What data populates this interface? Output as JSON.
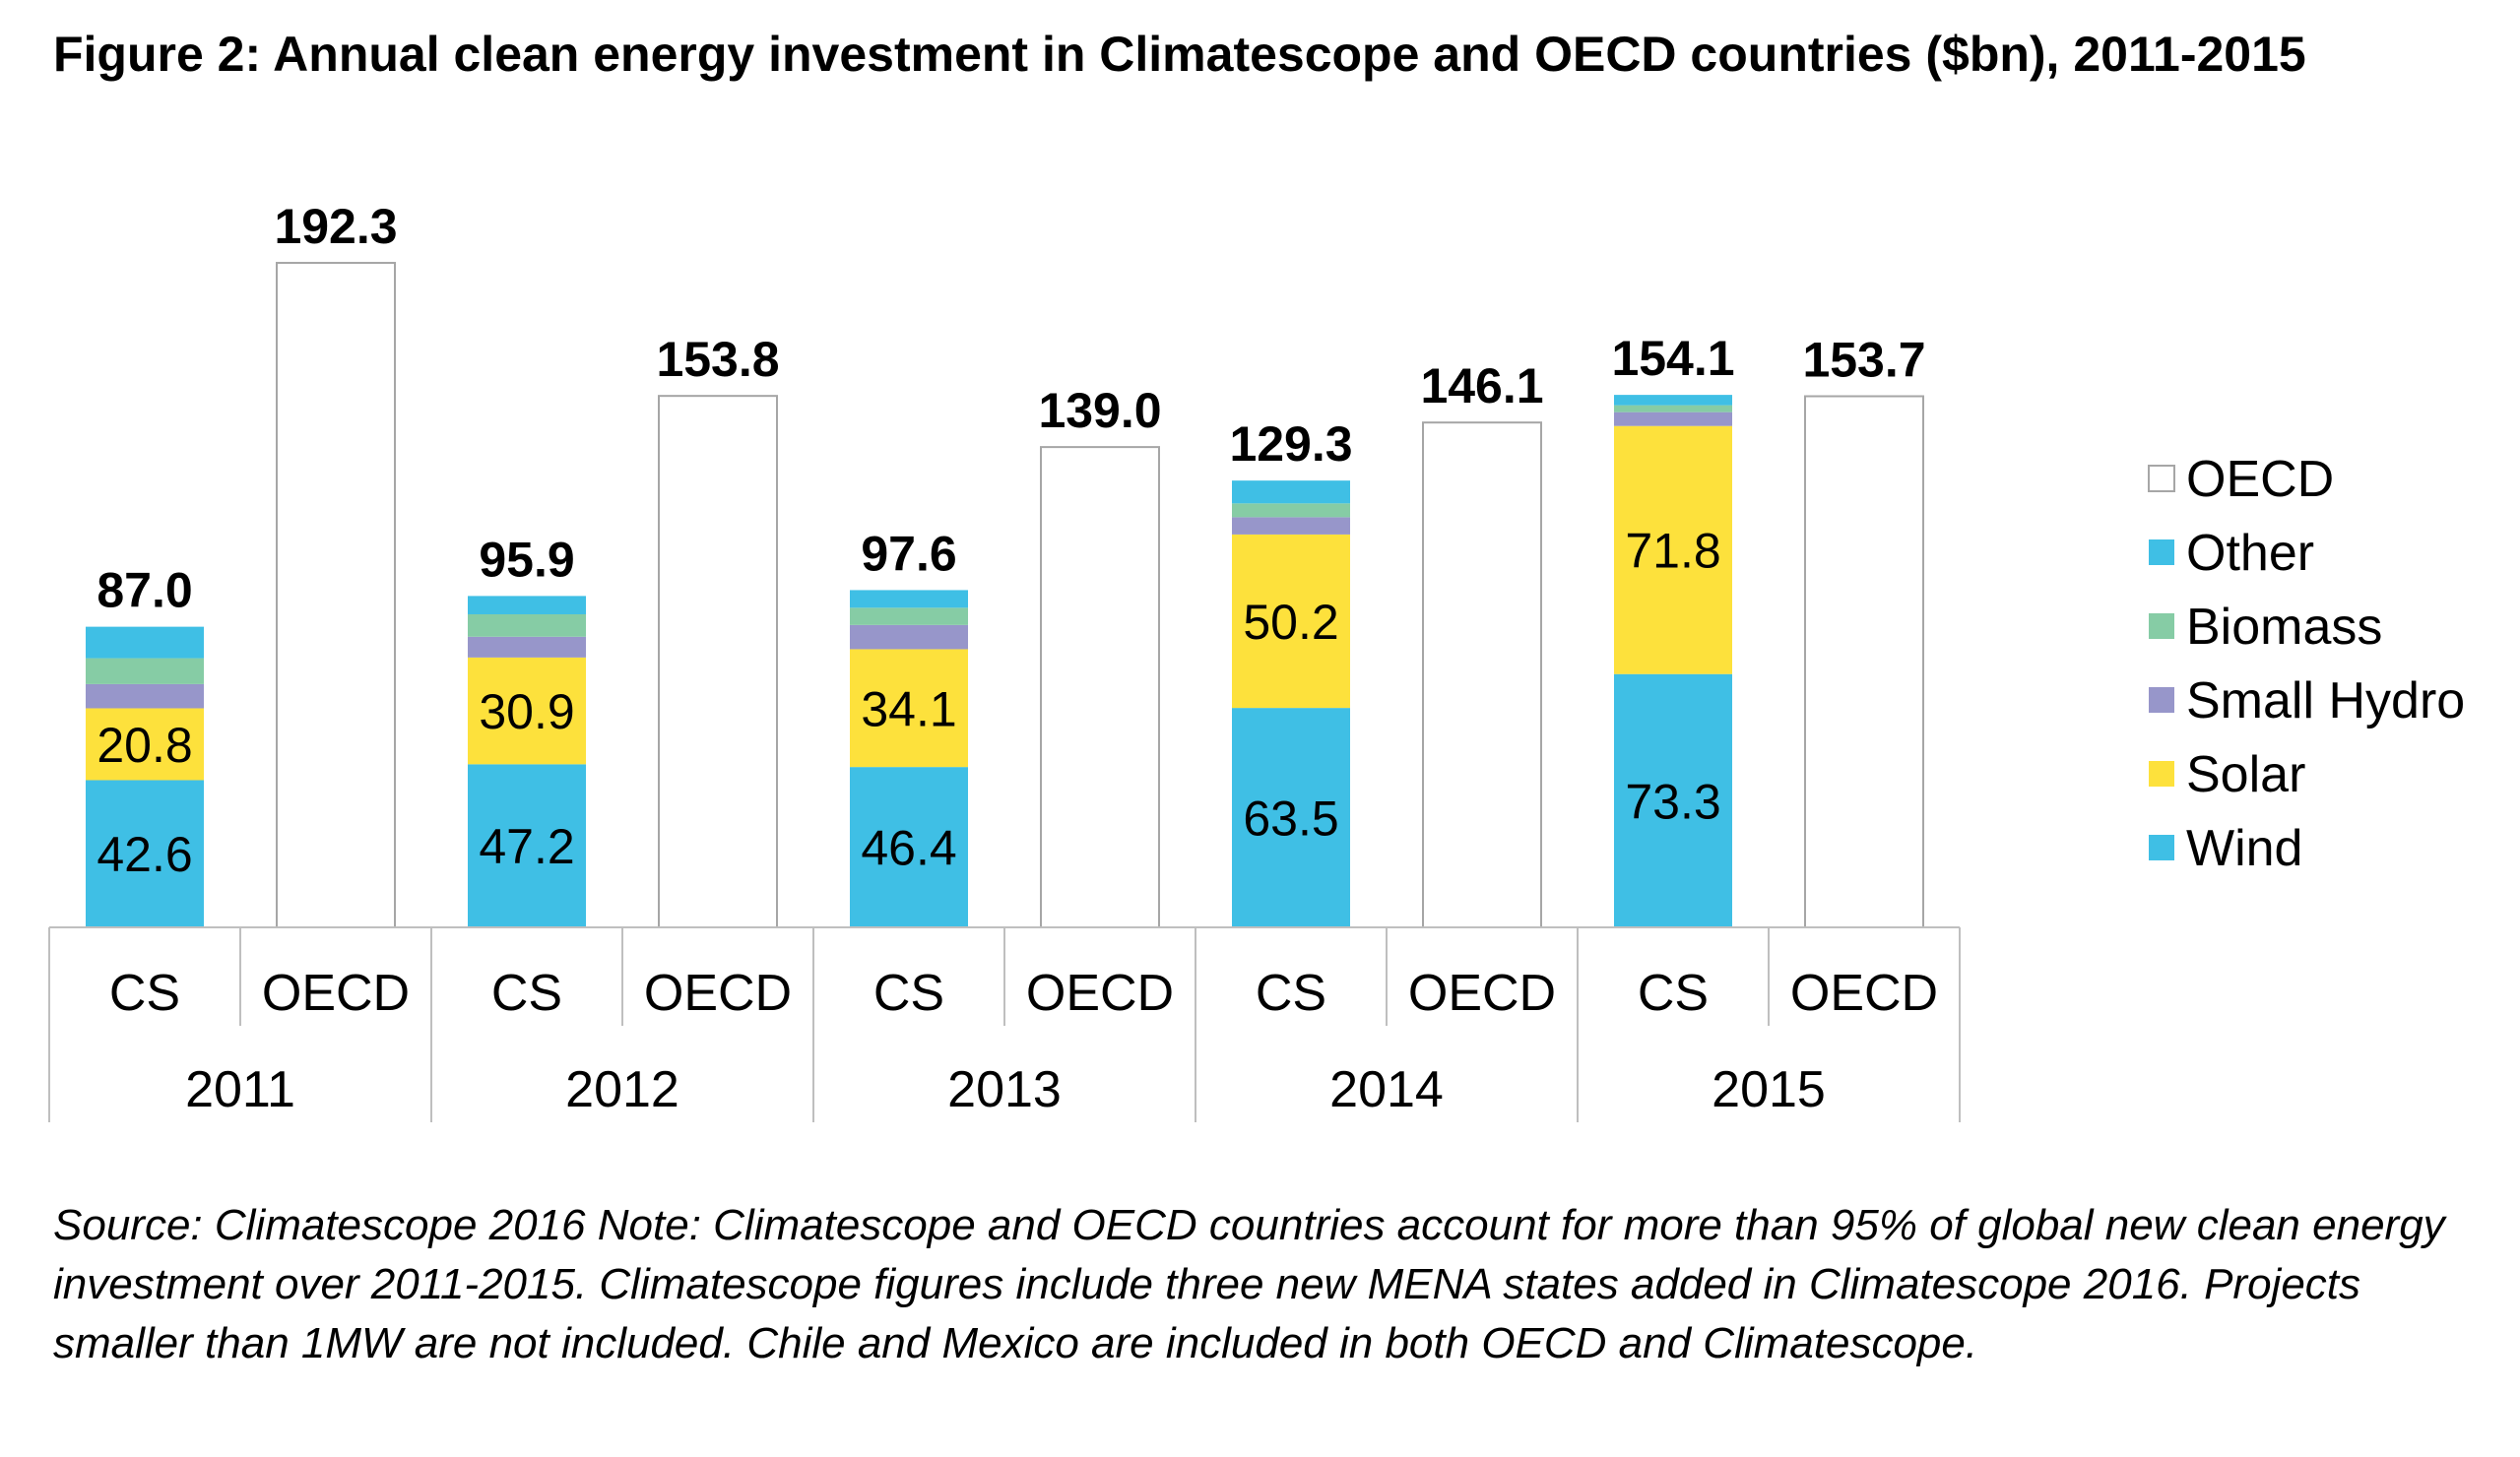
{
  "chart_data": {
    "type": "bar",
    "stacked": true,
    "title": "Figure 2: Annual clean energy investment in Climatescope and OECD countries ($bn), 2011-2015",
    "xlabel": "",
    "ylabel": "",
    "ylim": [
      0,
      200
    ],
    "grid": false,
    "legend_position": "right",
    "groups": [
      "2011",
      "2012",
      "2013",
      "2014",
      "2015"
    ],
    "categories": [
      "CS",
      "OECD",
      "CS",
      "OECD",
      "CS",
      "OECD",
      "CS",
      "OECD",
      "CS",
      "OECD"
    ],
    "x_group": [
      "2011",
      "2011",
      "2012",
      "2012",
      "2013",
      "2013",
      "2014",
      "2014",
      "2015",
      "2015"
    ],
    "totals": [
      "87.0",
      "192.3",
      "95.9",
      "153.8",
      "97.6",
      "139.0",
      "129.3",
      "146.1",
      "154.1",
      "153.7"
    ],
    "series": [
      {
        "name": "Wind",
        "color": "#3fbfe5",
        "values": [
          42.6,
          0,
          47.2,
          0,
          46.4,
          0,
          63.5,
          0,
          73.3,
          0
        ],
        "labels": [
          "42.6",
          "",
          "47.2",
          "",
          "46.4",
          "",
          "63.5",
          "",
          "73.3",
          ""
        ]
      },
      {
        "name": "Solar",
        "color": "#fde13c",
        "values": [
          20.8,
          0,
          30.9,
          0,
          34.1,
          0,
          50.2,
          0,
          71.8,
          0
        ],
        "labels": [
          "20.8",
          "",
          "30.9",
          "",
          "34.1",
          "",
          "50.2",
          "",
          "71.8",
          ""
        ]
      },
      {
        "name": "Small Hydro",
        "color": "#9796ca",
        "values": [
          7,
          0,
          6,
          0,
          7,
          0,
          5,
          0,
          4,
          0
        ],
        "labels": [
          "",
          "",
          "",
          "",
          "",
          "",
          "",
          "",
          "",
          ""
        ]
      },
      {
        "name": "Biomass",
        "color": "#86cca5",
        "values": [
          7.5,
          0,
          6.5,
          0,
          5,
          0,
          4,
          0,
          2,
          0
        ],
        "labels": [
          "",
          "",
          "",
          "",
          "",
          "",
          "",
          "",
          "",
          ""
        ]
      },
      {
        "name": "Other",
        "color": "#3fbfe5",
        "values": [
          9.1,
          0,
          5.3,
          0,
          5.1,
          0,
          6.6,
          0,
          3,
          0
        ],
        "labels": [
          "",
          "",
          "",
          "",
          "",
          "",
          "",
          "",
          "",
          ""
        ]
      },
      {
        "name": "OECD",
        "color": "#ffffff",
        "values": [
          0,
          192.3,
          0,
          153.8,
          0,
          139.0,
          0,
          146.1,
          0,
          153.7
        ],
        "labels": [
          "",
          "",
          "",
          "",
          "",
          "",
          "",
          "",
          "",
          ""
        ]
      }
    ],
    "legend_order": [
      "OECD",
      "Other",
      "Biomass",
      "Small Hydro",
      "Solar",
      "Wind"
    ]
  },
  "footnote": "Source: Climatescope 2016 Note: Climatescope and OECD countries account for more than 95% of global new clean energy investment over 2011-2015. Climatescope figures include three new MENA states added in Climatescope 2016. Projects smaller than 1MW are not included. Chile and Mexico are included in both OECD and Climatescope."
}
